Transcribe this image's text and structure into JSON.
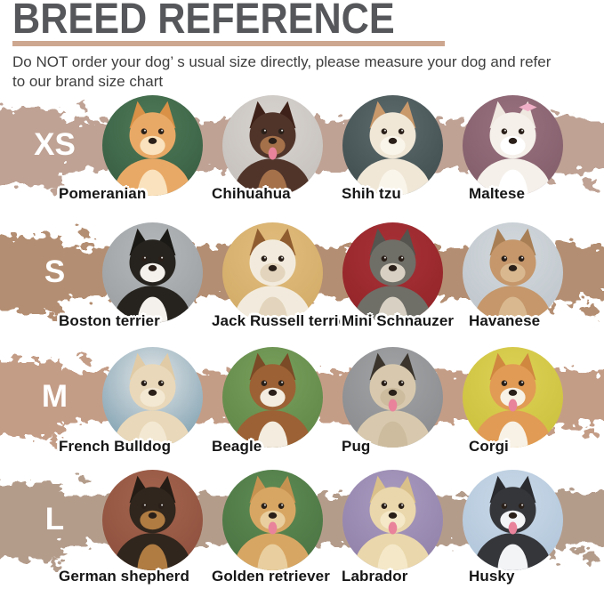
{
  "page": {
    "background": "#ffffff"
  },
  "header": {
    "title": "BREED REFERENCE",
    "title_color": "#55575a",
    "divider_color": "#cda78f",
    "subtitle_lines": [
      "Do NOT order your dog’ s usual size directly, please measure your dog and refer",
      "to our brand size chart"
    ],
    "subtitle_color": "#3e3e3e"
  },
  "palette": {
    "size_letter_color": "#ffffff",
    "label_color": "#161616",
    "label_outline": "#ffffff",
    "eye_color": "#2a2019",
    "tongue_color": "#e8839b"
  },
  "rows": [
    {
      "size": "XS",
      "band_color": "#bfa294",
      "breeds": [
        {
          "name": "Pomeranian",
          "bg": "#35593f",
          "bg2": "#4e7a58",
          "fur": "#e9a966",
          "ear": "#d89147",
          "fur2": "#f9e2bd"
        },
        {
          "name": "Chihuahua",
          "bg": "#c2bdb9",
          "bg2": "#d8d4d0",
          "fur": "#50342a",
          "ear": "#3e2118",
          "fur2": "#a4714a",
          "tongue": true
        },
        {
          "name": "Shih tzu",
          "bg": "#3c494b",
          "bg2": "#5e6c6e",
          "fur": "#f0e7d7",
          "ear": "#c9996b",
          "fur2": "#faf5ea"
        },
        {
          "name": "Maltese",
          "bg": "#7e5a66",
          "bg2": "#9a7280",
          "fur": "#f5f0ea",
          "ear": "#efe8e0",
          "fur2": "#ffffff",
          "bow": true,
          "accent": "#f0afc6"
        }
      ]
    },
    {
      "size": "S",
      "band_color": "#b48e72",
      "breeds": [
        {
          "name": "Boston terrier",
          "bg": "#979b9e",
          "bg2": "#b5b9bb",
          "fur": "#26231e",
          "ear": "#1b1915",
          "fur2": "#f4f1ec"
        },
        {
          "name": "Jack Russell terrier",
          "bg": "#cfa863",
          "bg2": "#e2bd7e",
          "fur": "#f2ebdd",
          "ear": "#8f5c30",
          "fur2": "#e3d5bd"
        },
        {
          "name": "Mini Schnauzer",
          "bg": "#8f2226",
          "bg2": "#a83237",
          "fur": "#6f6e67",
          "ear": "#55544e",
          "fur2": "#d8d1c3"
        },
        {
          "name": "Havanese",
          "bg": "#bcc3c9",
          "bg2": "#d3d9dd",
          "fur": "#c5976b",
          "ear": "#a87f55",
          "fur2": "#d9b88f"
        }
      ]
    },
    {
      "size": "M",
      "band_color": "#c49d87",
      "breeds": [
        {
          "name": "French Bulldog",
          "bg": "#6f95a8",
          "bg2": "#e3e6e7",
          "fur": "#e9d8b9",
          "ear": "#e0cba6",
          "fur2": "#f3e8d2"
        },
        {
          "name": "Beagle",
          "bg": "#5d8345",
          "bg2": "#79a05c",
          "fur": "#9c6134",
          "ear": "#7b4a26",
          "fur2": "#f3ecdf"
        },
        {
          "name": "Pug",
          "bg": "#85878a",
          "bg2": "#a2a4a6",
          "fur": "#d8c9ae",
          "ear": "#3a342c",
          "fur2": "#cdbc9e",
          "tongue": true
        },
        {
          "name": "Corgi",
          "bg": "#c9bd3a",
          "bg2": "#ded256",
          "fur": "#e19b54",
          "ear": "#d08740",
          "fur2": "#f8f2e6",
          "tongue": true
        }
      ]
    },
    {
      "size": "L",
      "band_color": "#b49c8b",
      "breeds": [
        {
          "name": "German shepherd",
          "bg": "#8a4d3a",
          "bg2": "#a5654f",
          "fur": "#30261d",
          "ear": "#241c15",
          "fur2": "#b07c42"
        },
        {
          "name": "Golden retriever",
          "bg": "#47703f",
          "bg2": "#5f8c55",
          "fur": "#d8a663",
          "ear": "#c69250",
          "fur2": "#e9cf9f",
          "tongue": true
        },
        {
          "name": "Labrador",
          "bg": "#8d7da6",
          "bg2": "#a99bc0",
          "fur": "#ead7ab",
          "ear": "#d9bf8a",
          "fur2": "#f4e8c8",
          "tongue": true
        },
        {
          "name": "Husky",
          "bg": "#aec3d8",
          "bg2": "#c9d9e8",
          "fur": "#35363a",
          "ear": "#2a2b2f",
          "fur2": "#f3f4f6",
          "tongue": true
        }
      ]
    }
  ]
}
